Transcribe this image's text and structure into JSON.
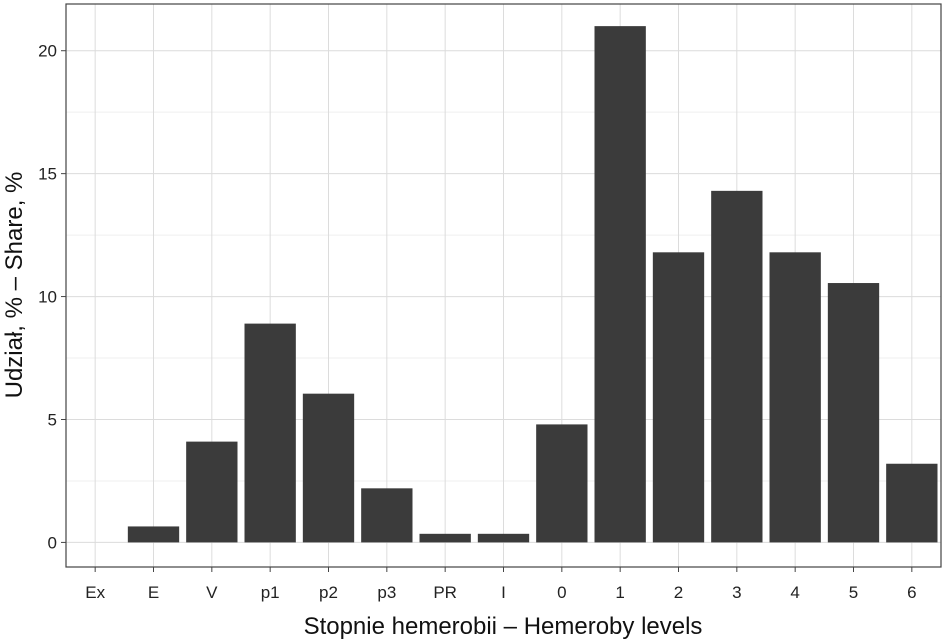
{
  "chart_data": {
    "type": "bar",
    "title": "",
    "xlabel": "Stopnie hemerobii – Hemeroby levels",
    "ylabel": "Udział, % – Share, %",
    "categories": [
      "Ex",
      "E",
      "V",
      "p1",
      "p2",
      "p3",
      "PR",
      "I",
      "0",
      "1",
      "2",
      "3",
      "4",
      "5",
      "6"
    ],
    "values": [
      0,
      0.65,
      4.1,
      8.9,
      6.05,
      2.2,
      0.35,
      0.35,
      4.8,
      21.0,
      11.8,
      14.3,
      11.8,
      10.55,
      3.2
    ],
    "ylim": [
      -1.0,
      21.9
    ],
    "yticks": [
      0,
      5,
      10,
      15,
      20
    ],
    "ytick_labels": [
      "0",
      "5",
      "10",
      "15",
      "20"
    ],
    "grid": true,
    "legend": "none",
    "colors": {
      "bar": "#3b3b3b",
      "grid_major": "#dcdcdc",
      "grid_minor": "#efefef",
      "frame": "#444444",
      "background": "#ffffff"
    }
  }
}
